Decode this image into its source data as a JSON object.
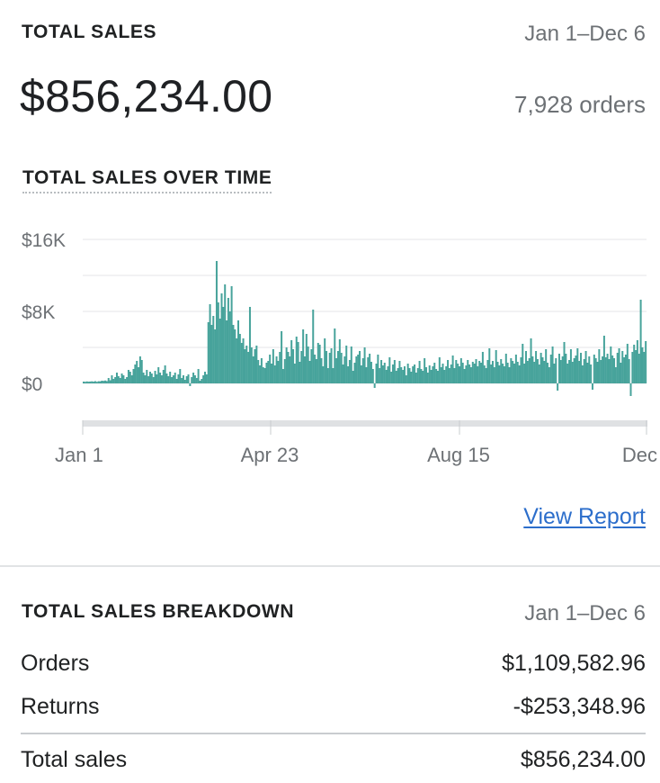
{
  "summary": {
    "title": "TOTAL SALES",
    "date_range": "Jan 1–Dec 6",
    "total_value": "$856,234.00",
    "orders_count": "7,928 orders"
  },
  "chart_section": {
    "title": "TOTAL SALES OVER TIME",
    "view_report_label": "View Report"
  },
  "colors": {
    "bar": "#47a39b",
    "grid": "#e4e5e7",
    "link": "#2c6ecb",
    "scrollbar": "#dfe1e3"
  },
  "chart_data": {
    "type": "bar",
    "title": "TOTAL SALES OVER TIME",
    "xlabel": "",
    "ylabel": "",
    "ylim": [
      -4000,
      16000
    ],
    "yticks": [
      "$16K",
      "$8K",
      "$0"
    ],
    "ytick_values": [
      16000,
      8000,
      0
    ],
    "xticks": [
      "Jan 1",
      "Apr 23",
      "Aug 15",
      "Dec"
    ],
    "x_range": [
      "Jan 1",
      "Dec 6"
    ],
    "grid": true,
    "daily_values": [
      200,
      180,
      220,
      190,
      210,
      230,
      200,
      250,
      180,
      240,
      230,
      300,
      280,
      320,
      260,
      600,
      350,
      900,
      500,
      700,
      1200,
      800,
      600,
      1100,
      900,
      500,
      700,
      1500,
      1300,
      900,
      1600,
      2100,
      2500,
      1800,
      3000,
      2600,
      1200,
      900,
      1500,
      800,
      1300,
      1100,
      700,
      1400,
      1000,
      1800,
      1200,
      900,
      1500,
      2000,
      1100,
      800,
      1300,
      700,
      900,
      1200,
      500,
      1000,
      1600,
      600,
      900,
      400,
      800,
      1000,
      -300,
      700,
      1200,
      900,
      600,
      1600,
      300,
      500,
      900,
      1300,
      1000,
      6800,
      8800,
      6500,
      7500,
      6000,
      13600,
      9000,
      7200,
      10000,
      8500,
      11000,
      7000,
      9500,
      8000,
      10800,
      6500,
      6000,
      5000,
      7000,
      5500,
      4500,
      5000,
      3800,
      4200,
      3500,
      8500,
      4000,
      3000,
      3800,
      4200,
      2600,
      2000,
      2800,
      1800,
      1700,
      2300,
      2500,
      3200,
      2200,
      3800,
      2000,
      3000,
      2500,
      3500,
      5800,
      1600,
      2700,
      4000,
      3500,
      3000,
      4800,
      3800,
      2200,
      5200,
      4600,
      2400,
      3600,
      6000,
      3000,
      5500,
      4100,
      2500,
      3800,
      8200,
      3200,
      2700,
      4500,
      4300,
      2800,
      1900,
      5000,
      3600,
      1700,
      3400,
      3900,
      1700,
      6100,
      2800,
      3600,
      4900,
      3400,
      2100,
      3000,
      4200,
      1900,
      2600,
      4100,
      1400,
      2300,
      3000,
      3200,
      3600,
      2000,
      2800,
      4000,
      1800,
      2900,
      3300,
      2400,
      1600,
      -500,
      2200,
      3200,
      1700,
      2600,
      2000,
      2300,
      1500,
      1900,
      2900,
      1300,
      2100,
      2600,
      1400,
      1700,
      2500,
      1800,
      1500,
      1900,
      900,
      2200,
      1700,
      1300,
      1900,
      2100,
      1200,
      1700,
      2500,
      1600,
      1400,
      2800,
      1800,
      1200,
      2000,
      1500,
      1900,
      2300,
      1600,
      1400,
      2900,
      1800,
      2200,
      1500,
      1900,
      2600,
      1700,
      2100,
      3100,
      1700,
      2600,
      2200,
      1900,
      2800,
      2300,
      1600,
      2000,
      2600,
      2100,
      1800,
      2400,
      2200,
      2700,
      1900,
      2500,
      2300,
      3500,
      2000,
      1700,
      2600,
      3900,
      2100,
      2500,
      1800,
      3700,
      2400,
      2000,
      2700,
      2200,
      1900,
      3300,
      2300,
      1800,
      2800,
      2500,
      2200,
      3200,
      2400,
      2000,
      2900,
      4400,
      2200,
      3600,
      2500,
      2800,
      5000,
      3000,
      2400,
      3600,
      2700,
      2100,
      3400,
      2900,
      2500,
      3800,
      2300,
      1800,
      3200,
      4100,
      2200,
      2800,
      -800,
      3300,
      2600,
      3000,
      4600,
      3300,
      2200,
      2600,
      3800,
      2400,
      2800,
      3100,
      3900,
      2500,
      3400,
      2000,
      2700,
      3600,
      2300,
      3000,
      2100,
      -700,
      3200,
      2800,
      2400,
      3800,
      2600,
      3000,
      5300,
      2900,
      3300,
      2700,
      4100,
      3100,
      2800,
      1800,
      3400,
      3900,
      2300,
      3600,
      2900,
      3200,
      4400,
      2700,
      -1400,
      3500,
      4300,
      3700,
      4800,
      3300,
      9300,
      4000,
      3500,
      4700
    ]
  },
  "breakdown": {
    "title": "TOTAL SALES BREAKDOWN",
    "date_range": "Jan 1–Dec 6",
    "rows": [
      {
        "label": "Orders",
        "value": "$1,109,582.96"
      },
      {
        "label": "Returns",
        "value": "-$253,348.96"
      }
    ],
    "total": {
      "label": "Total sales",
      "value": "$856,234.00"
    }
  }
}
